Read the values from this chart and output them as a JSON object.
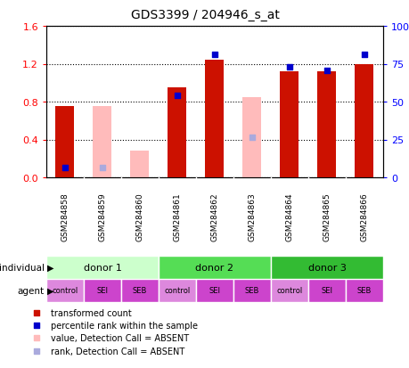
{
  "title": "GDS3399 / 204946_s_at",
  "samples": [
    "GSM284858",
    "GSM284859",
    "GSM284860",
    "GSM284861",
    "GSM284862",
    "GSM284863",
    "GSM284864",
    "GSM284865",
    "GSM284866"
  ],
  "red_bars": [
    0.75,
    0.0,
    0.0,
    0.95,
    1.24,
    0.0,
    1.12,
    1.12,
    1.2
  ],
  "pink_bars": [
    0.0,
    0.75,
    0.28,
    0.0,
    0.0,
    0.85,
    0.0,
    0.0,
    0.0
  ],
  "blue_dots": [
    0.1,
    0.0,
    0.0,
    0.87,
    1.3,
    0.0,
    1.17,
    1.13,
    1.3
  ],
  "lblue_dots": [
    0.0,
    0.1,
    0.0,
    0.0,
    0.0,
    0.42,
    0.0,
    0.0,
    0.0
  ],
  "ylim_left": [
    0.0,
    1.6
  ],
  "ylim_right": [
    0.0,
    100
  ],
  "yticks_left": [
    0.0,
    0.4,
    0.8,
    1.2,
    1.6
  ],
  "yticks_right": [
    0,
    25,
    50,
    75,
    100
  ],
  "yticklabels_right": [
    "0",
    "25",
    "50",
    "75",
    "100%"
  ],
  "donor_groups": [
    {
      "label": "donor 1",
      "start": 0,
      "end": 3,
      "color": "#ccffcc"
    },
    {
      "label": "donor 2",
      "start": 3,
      "end": 6,
      "color": "#55dd55"
    },
    {
      "label": "donor 3",
      "start": 6,
      "end": 9,
      "color": "#33bb33"
    }
  ],
  "agent_labels": [
    "control",
    "SEI",
    "SEB",
    "control",
    "SEI",
    "SEB",
    "control",
    "SEI",
    "SEB"
  ],
  "agent_colors": [
    "#dd88dd",
    "#cc44cc",
    "#cc44cc",
    "#dd88dd",
    "#cc44cc",
    "#cc44cc",
    "#dd88dd",
    "#cc44cc",
    "#cc44cc"
  ],
  "bar_width": 0.5,
  "dot_size": 18,
  "color_red": "#cc1100",
  "color_pink": "#ffbbbb",
  "color_blue": "#0000cc",
  "color_lblue": "#aaaadd",
  "color_gray_bg": "#bbbbbb"
}
